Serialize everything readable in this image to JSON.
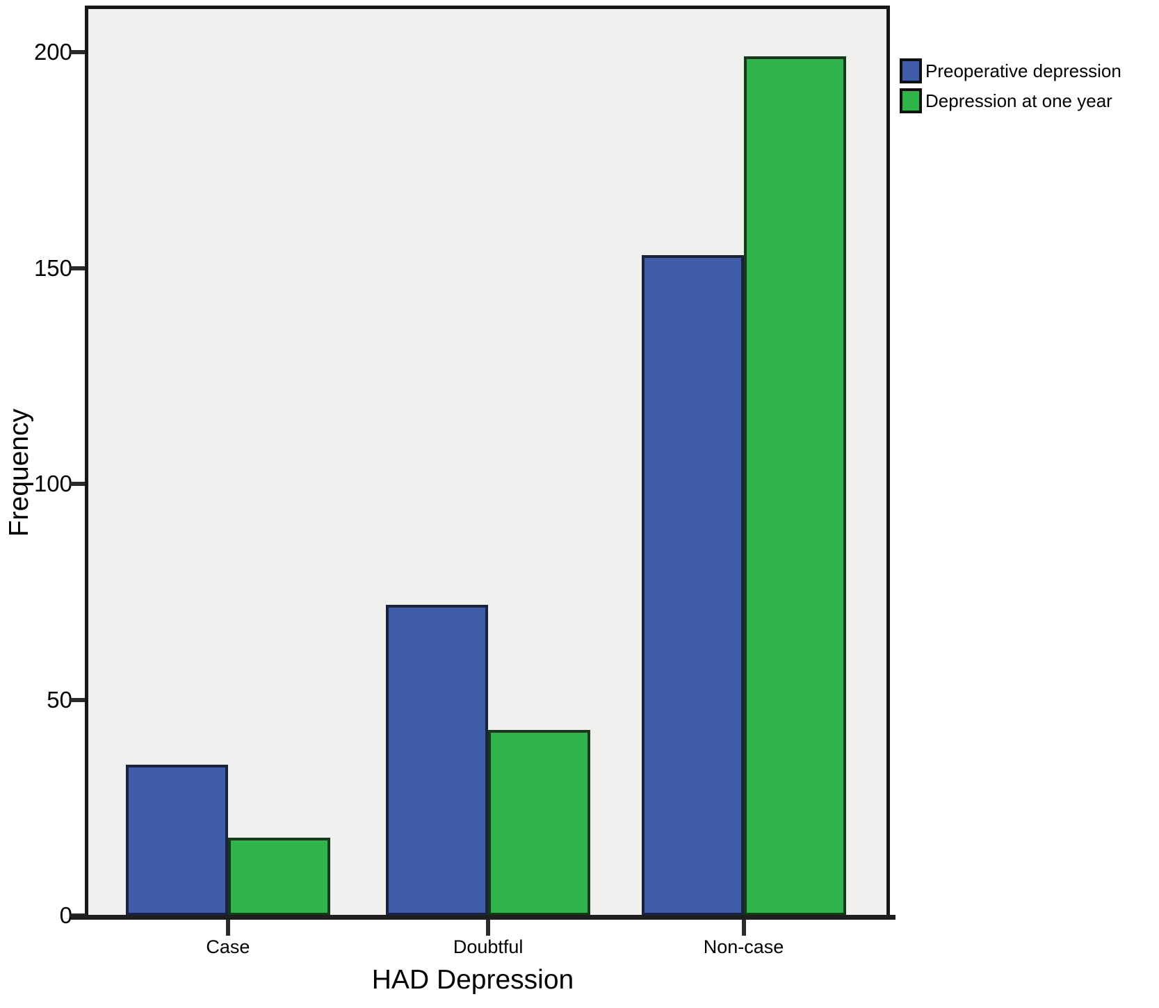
{
  "chart_data": {
    "type": "bar",
    "title": "",
    "xlabel": "HAD Depression",
    "ylabel": "Frequency",
    "categories": [
      "Case",
      "Doubtful",
      "Non-case"
    ],
    "series": [
      {
        "name": "Preoperative depression",
        "color": "#3E5CA8",
        "border_color": "#19223E",
        "values": [
          35,
          72,
          153
        ]
      },
      {
        "name": "Depression at one year",
        "color": "#2FB44C",
        "border_color": "#143A1C",
        "values": [
          18,
          43,
          199
        ]
      }
    ],
    "yticks": [
      0,
      50,
      100,
      150,
      200
    ],
    "ylim": [
      0,
      210
    ],
    "grid": false,
    "legend_position": "top-right",
    "plot_background": "#F0F0EE"
  }
}
